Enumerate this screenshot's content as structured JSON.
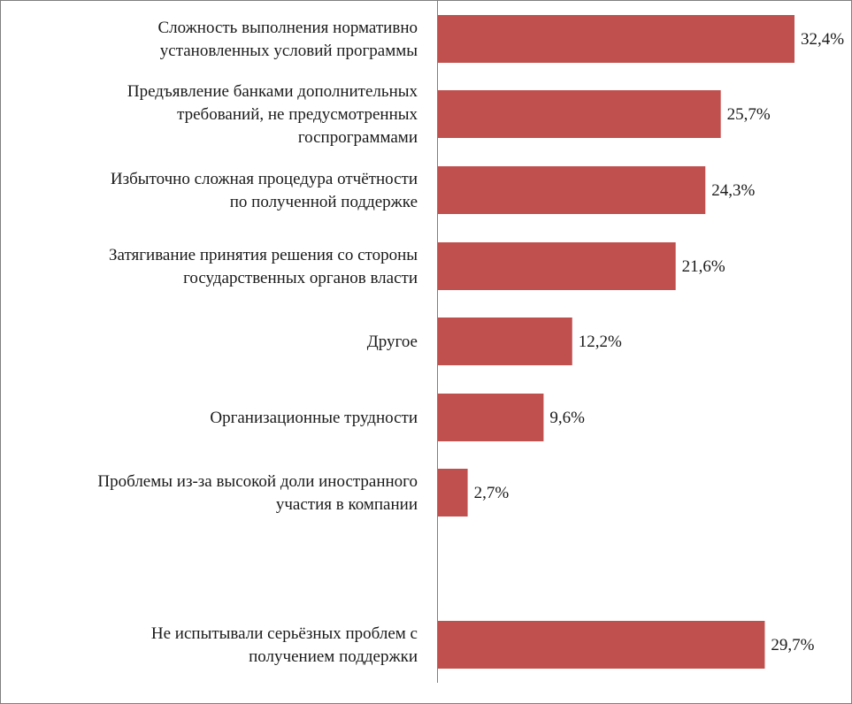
{
  "chart_data": {
    "type": "bar",
    "orientation": "horizontal",
    "categories": [
      [
        "Сложность выполнения нормативно",
        "установленных условий программы"
      ],
      [
        "Предъявление банками дополнительных",
        "требований, не предусмотренных",
        "госпрограммами"
      ],
      [
        "Избыточно сложная процедура отчётности",
        "по полученной поддержке"
      ],
      [
        "Затягивание принятия решения со стороны",
        "государственных органов власти"
      ],
      [
        "Другое"
      ],
      [
        "Организационные трудности"
      ],
      [
        "Проблемы из-за высокой доли иностранного",
        "участия в компании"
      ],
      [
        "Не испытывали серьёзных проблем с",
        "получением поддержки"
      ]
    ],
    "values": [
      32.4,
      25.7,
      24.3,
      21.6,
      12.2,
      9.6,
      2.7,
      29.7
    ],
    "value_labels": [
      "32,4%",
      "25,7%",
      "24,3%",
      "21,6%",
      "12,2%",
      "9,6%",
      "2,7%",
      "29,7%"
    ],
    "gap_before_last": true,
    "bar_color": "#c0504d",
    "axis_color": "#7f7f7f",
    "grid": false,
    "legend": "none",
    "xlim": [
      0,
      35
    ]
  }
}
